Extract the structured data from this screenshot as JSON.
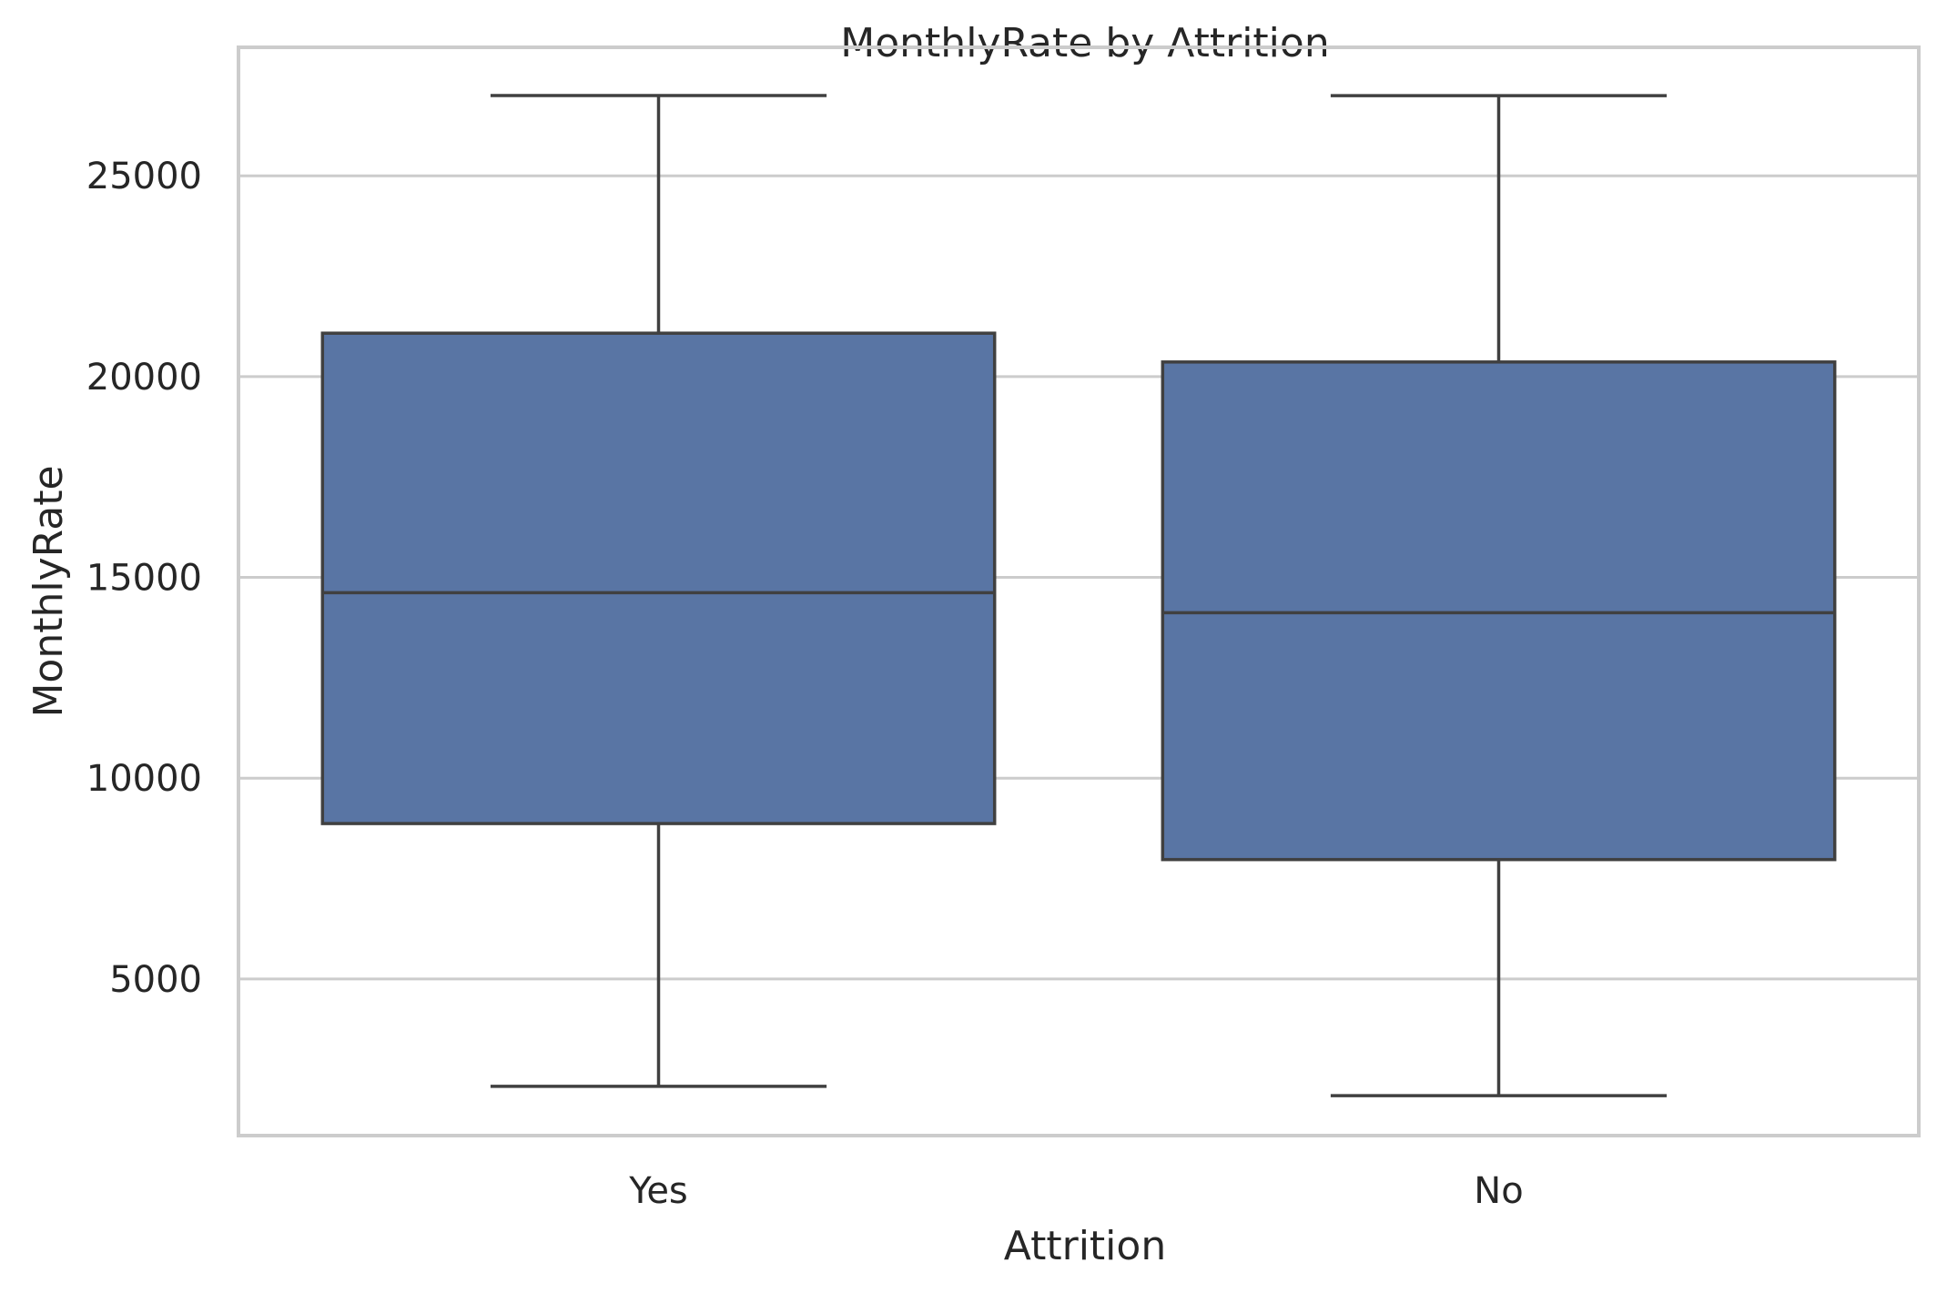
{
  "chart_data": {
    "type": "box",
    "title": "MonthlyRate by Attrition",
    "xlabel": "Attrition",
    "ylabel": "MonthlyRate",
    "categories": [
      "Yes",
      "No"
    ],
    "boxes": [
      {
        "category": "Yes",
        "whisker_low": 2326,
        "q1": 8870,
        "median": 14618,
        "q3": 21081,
        "whisker_high": 26999
      },
      {
        "category": "No",
        "whisker_low": 2094,
        "q1": 7973,
        "median": 14121,
        "q3": 20364,
        "whisker_high": 26997
      }
    ],
    "y_ticks": [
      5000,
      10000,
      15000,
      20000,
      25000
    ],
    "ylim": [
      1100,
      28200
    ],
    "grid": true,
    "colors": {
      "box_fill": "#5975a4",
      "line": "#404040",
      "grid": "#cccccc",
      "frame": "#cccccc",
      "text": "#262626"
    }
  }
}
